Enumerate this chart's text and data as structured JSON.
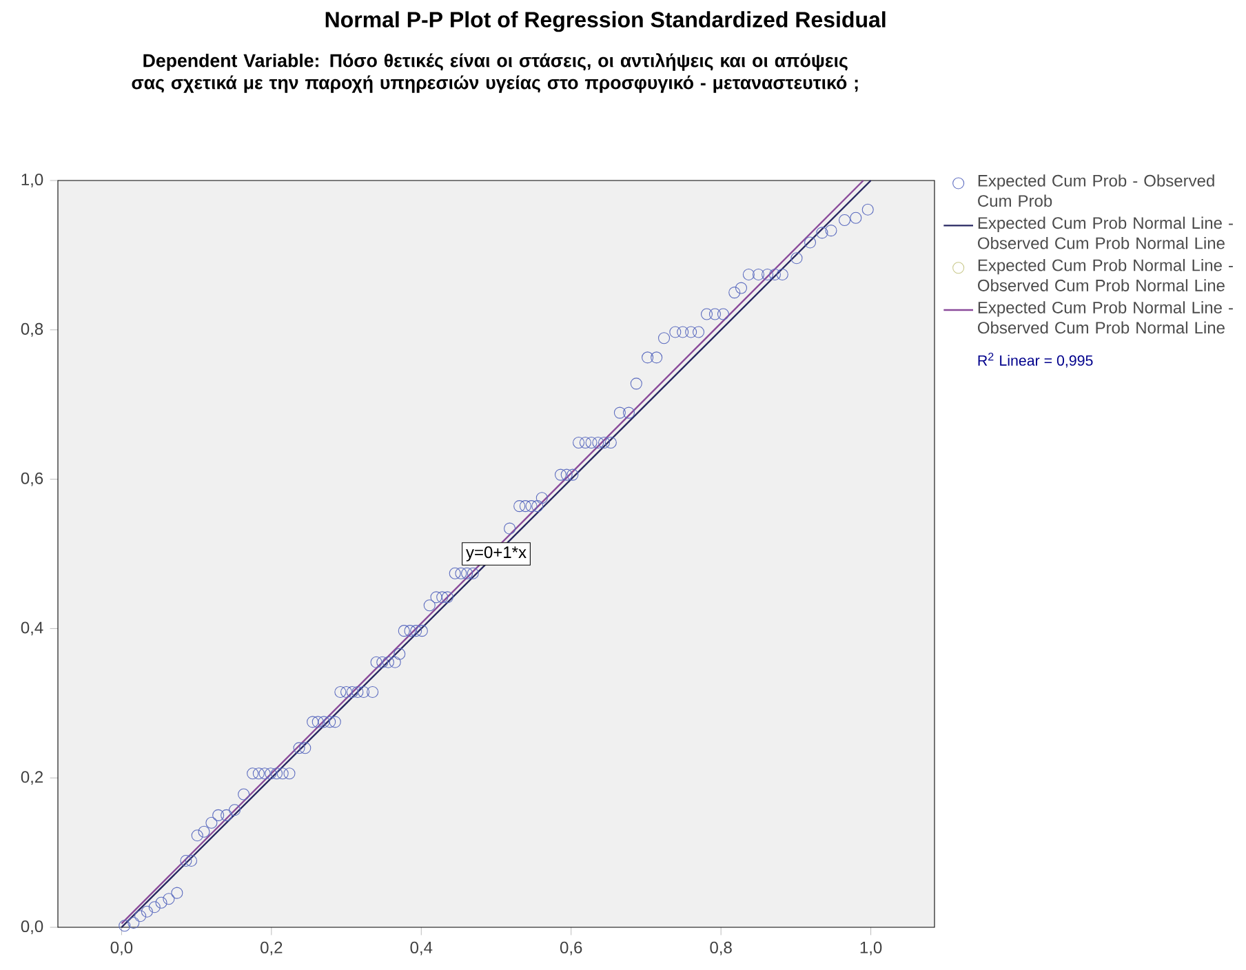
{
  "chart_data": {
    "type": "scatter",
    "title": "Normal P-P Plot of Regression Standardized Residual",
    "subtitle": "Dependent Variable: Πόσο θετικές είναι οι στάσεις, οι αντιλήψεις και οι απόψεις σας σχετικά με την παροχή υπηρεσιών υγείας στο προσφυγικό - μεταναστευτικό ;",
    "xlim": [
      -0.085,
      1.085
    ],
    "ylim": [
      0,
      1
    ],
    "xticks": [
      {
        "value": 0,
        "label": "0,0"
      },
      {
        "value": 0.2,
        "label": "0,2"
      },
      {
        "value": 0.4,
        "label": "0,4"
      },
      {
        "value": 0.6,
        "label": "0,6"
      },
      {
        "value": 0.8,
        "label": "0,8"
      },
      {
        "value": 1,
        "label": "1,0"
      }
    ],
    "yticks": [
      {
        "value": 0,
        "label": "0,0"
      },
      {
        "value": 0.2,
        "label": "0,2"
      },
      {
        "value": 0.4,
        "label": "0,4"
      },
      {
        "value": 0.6,
        "label": "0,6"
      },
      {
        "value": 0.8,
        "label": "0,8"
      },
      {
        "value": 1,
        "label": "1,0"
      }
    ],
    "legend": "right",
    "grid": false,
    "series": [
      {
        "name": "Expected Cum Prob - Observed Cum Prob",
        "marker": "circle",
        "color": "#5b6bbf",
        "x": [
          0.004,
          0.016,
          0.025,
          0.034,
          0.044,
          0.053,
          0.063,
          0.074,
          0.086,
          0.093,
          0.101,
          0.11,
          0.12,
          0.129,
          0.14,
          0.151,
          0.163,
          0.175,
          0.183,
          0.191,
          0.199,
          0.207,
          0.215,
          0.224,
          0.237,
          0.245,
          0.255,
          0.262,
          0.27,
          0.278,
          0.285,
          0.292,
          0.3,
          0.308,
          0.315,
          0.323,
          0.335,
          0.34,
          0.348,
          0.356,
          0.365,
          0.371,
          0.377,
          0.385,
          0.393,
          0.401,
          0.411,
          0.42,
          0.428,
          0.435,
          0.445,
          0.453,
          0.461,
          0.469,
          0.518,
          0.531,
          0.539,
          0.547,
          0.555,
          0.561,
          0.586,
          0.594,
          0.602,
          0.61,
          0.619,
          0.627,
          0.636,
          0.644,
          0.653,
          0.665,
          0.677,
          0.687,
          0.702,
          0.714,
          0.724,
          0.739,
          0.749,
          0.76,
          0.77,
          0.781,
          0.792,
          0.803,
          0.818,
          0.827,
          0.837,
          0.85,
          0.862,
          0.872,
          0.882,
          0.901,
          0.919,
          0.935,
          0.947,
          0.965,
          0.98,
          0.996
        ],
        "values": [
          0.002,
          0.006,
          0.015,
          0.021,
          0.027,
          0.033,
          0.038,
          0.046,
          0.089,
          0.089,
          0.123,
          0.128,
          0.14,
          0.15,
          0.15,
          0.157,
          0.178,
          0.206,
          0.206,
          0.206,
          0.206,
          0.206,
          0.206,
          0.206,
          0.24,
          0.24,
          0.275,
          0.275,
          0.275,
          0.275,
          0.275,
          0.315,
          0.315,
          0.315,
          0.315,
          0.315,
          0.315,
          0.355,
          0.355,
          0.355,
          0.355,
          0.366,
          0.397,
          0.397,
          0.397,
          0.397,
          0.431,
          0.442,
          0.442,
          0.442,
          0.474,
          0.474,
          0.474,
          0.474,
          0.534,
          0.564,
          0.564,
          0.564,
          0.564,
          0.575,
          0.606,
          0.606,
          0.606,
          0.649,
          0.649,
          0.649,
          0.649,
          0.649,
          0.649,
          0.689,
          0.689,
          0.728,
          0.763,
          0.763,
          0.789,
          0.797,
          0.797,
          0.797,
          0.797,
          0.821,
          0.821,
          0.821,
          0.85,
          0.856,
          0.874,
          0.874,
          0.874,
          0.874,
          0.874,
          0.896,
          0.917,
          0.93,
          0.933,
          0.947,
          0.95,
          0.961
        ]
      },
      {
        "name": "Expected Cum Prob Normal Line - Observed Cum Prob Normal Line",
        "type": "line",
        "marker": "none",
        "color": "#262660",
        "x": [
          0,
          1
        ],
        "values": [
          0,
          1
        ]
      },
      {
        "name": "Expected Cum Prob Normal Line - Observed Cum Prob Normal Line",
        "marker": "circle",
        "color": "#c8c88a"
      },
      {
        "name": "Expected Cum Prob Normal Line - Observed Cum Prob Normal Line",
        "type": "line",
        "marker": "none",
        "color": "#8a4a9a",
        "x": [
          0,
          0.99
        ],
        "values": [
          0.005,
          1
        ]
      }
    ],
    "annotations": [
      {
        "text": "y=0+1*x",
        "x": 0.5,
        "y": 0.5
      },
      "R$^{2}$ Linear = 0,995"
    ]
  }
}
